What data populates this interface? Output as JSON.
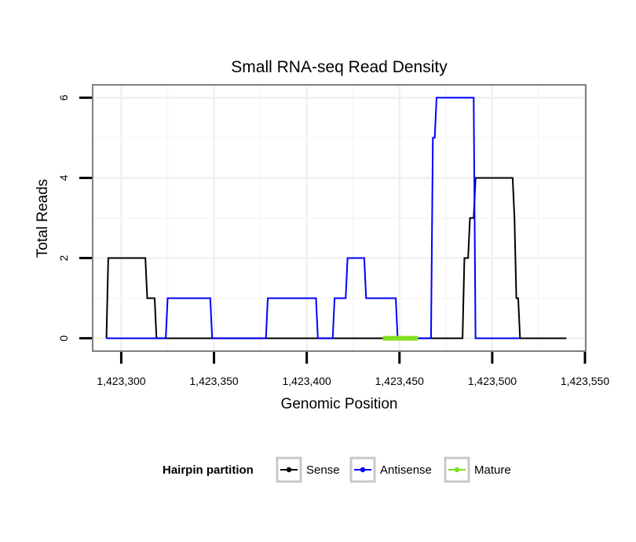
{
  "chart_data": {
    "type": "line",
    "title": "Small RNA-seq Read Density",
    "xlabel": "Genomic Position",
    "ylabel": "Total Reads",
    "xlim": [
      1423285,
      1423550
    ],
    "ylim": [
      -0.3,
      6.3
    ],
    "x_ticks": [
      1423300,
      1423350,
      1423400,
      1423450,
      1423500,
      1423550
    ],
    "x_tick_labels": [
      "1,423,300",
      "1,423,350",
      "1,423,400",
      "1,423,450",
      "1,423,500",
      "1,423,550"
    ],
    "y_ticks": [
      0,
      2,
      4,
      6
    ],
    "y_tick_labels": [
      "0",
      "2",
      "4",
      "6"
    ],
    "grid": true,
    "legend": {
      "title": "Hairpin partition",
      "position": "bottom",
      "entries": [
        "Sense",
        "Antisense",
        "Mature"
      ]
    },
    "series": [
      {
        "name": "Sense",
        "color": "#000000",
        "x": [
          1423292,
          1423293,
          1423295,
          1423313,
          1423314,
          1423318,
          1423319,
          1423484,
          1423485,
          1423487,
          1423488,
          1423490,
          1423491,
          1423511,
          1423512,
          1423513,
          1423514,
          1423515,
          1423540
        ],
        "y": [
          0,
          2,
          2,
          2,
          1,
          1,
          0,
          0,
          2,
          2,
          3,
          3,
          4,
          4,
          3,
          1,
          1,
          0,
          0
        ]
      },
      {
        "name": "Antisense",
        "color": "#0000ff",
        "x": [
          1423292,
          1423324,
          1423325,
          1423348,
          1423349,
          1423378,
          1423379,
          1423405,
          1423406,
          1423414,
          1423415,
          1423421,
          1423422,
          1423431,
          1423432,
          1423439,
          1423440,
          1423448,
          1423449,
          1423467,
          1423468,
          1423469,
          1423470,
          1423490,
          1423491,
          1423515
        ],
        "y": [
          0,
          0,
          1,
          1,
          0,
          0,
          1,
          1,
          0,
          0,
          1,
          1,
          2,
          2,
          1,
          1,
          1,
          1,
          0,
          0,
          5,
          5,
          6,
          6,
          0,
          0
        ]
      },
      {
        "name": "Mature",
        "color": "#7fe01e",
        "x": [
          1423441,
          1423460
        ],
        "y": [
          0,
          0
        ]
      }
    ]
  }
}
